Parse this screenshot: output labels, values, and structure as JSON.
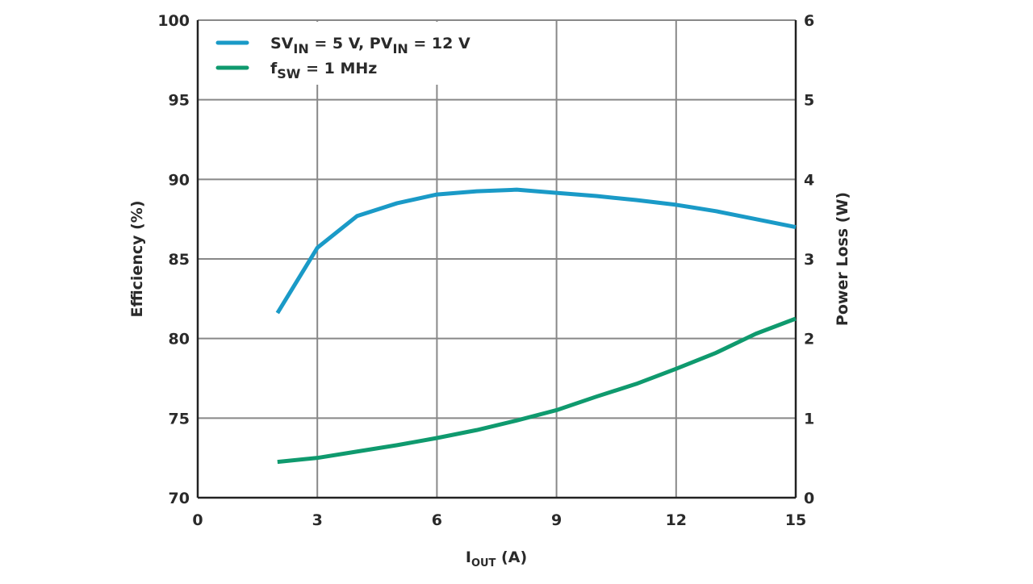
{
  "chart_data": {
    "type": "line",
    "xlabel": {
      "main": "I",
      "sub": "OUT",
      "unit": " (A)"
    },
    "ylabel": "Efficiency (%)",
    "y2label": "Power Loss (W)",
    "xlim": [
      0,
      15
    ],
    "ylim": [
      70,
      100
    ],
    "y2lim": [
      0,
      6
    ],
    "xticks": [
      "0",
      "3",
      "6",
      "9",
      "12",
      "15"
    ],
    "yticks": [
      "70",
      "75",
      "80",
      "85",
      "90",
      "95",
      "100"
    ],
    "y2ticks": [
      "0",
      "1",
      "2",
      "3",
      "4",
      "5",
      "6"
    ],
    "grid": true,
    "legend_position": "top-left",
    "legend": [
      {
        "parts": [
          [
            "SV",
            ""
          ],
          [
            "IN",
            "sub"
          ],
          [
            " = 5 V, PV",
            ""
          ],
          [
            "IN",
            "sub"
          ],
          [
            " = 12 V",
            ""
          ]
        ],
        "color": "#1a9ac7"
      },
      {
        "parts": [
          [
            "f",
            ""
          ],
          [
            "SW",
            "sub"
          ],
          [
            " = 1 MHz",
            ""
          ]
        ],
        "color": "#0f9a6e"
      }
    ],
    "x": [
      2,
      3,
      4,
      5,
      6,
      7,
      8,
      9,
      10,
      11,
      12,
      13,
      14,
      15
    ],
    "series": [
      {
        "axis": "left",
        "color": "#1a9ac7",
        "values": [
          81.6,
          85.7,
          87.7,
          88.5,
          89.05,
          89.25,
          89.35,
          89.15,
          88.95,
          88.7,
          88.4,
          88.0,
          87.5,
          87.0
        ]
      },
      {
        "axis": "right",
        "color": "#0f9a6e",
        "values": [
          0.45,
          0.5,
          0.58,
          0.66,
          0.75,
          0.85,
          0.97,
          1.1,
          1.27,
          1.43,
          1.62,
          1.82,
          2.06,
          2.25
        ]
      }
    ]
  }
}
